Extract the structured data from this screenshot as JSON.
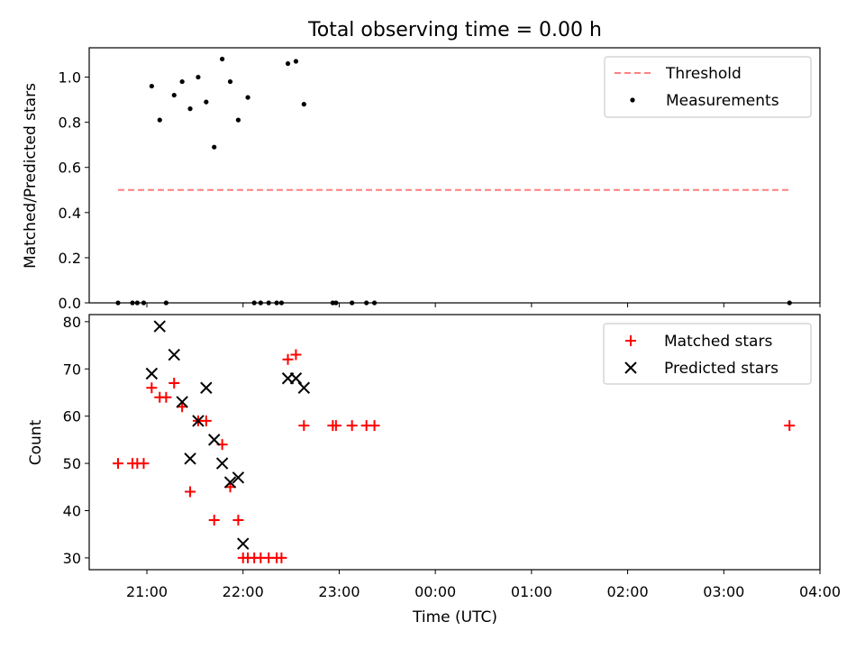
{
  "title": "Total observing time = 0.00 h",
  "xlabel": "Time (UTC)",
  "x_ticks": [
    "21:00",
    "22:00",
    "23:00",
    "00:00",
    "01:00",
    "02:00",
    "03:00",
    "04:00"
  ],
  "chart_data": [
    {
      "type": "scatter",
      "title": "Total observing time = 0.00 h",
      "ylabel": "Matched/Predicted stars",
      "xlabel": "",
      "x_unit": "hours since 00:00 UTC of first night day",
      "xlim": [
        "20:24",
        "04:00"
      ],
      "ylim": [
        0,
        1.13
      ],
      "y_ticks": [
        "0.0",
        "0.2",
        "0.4",
        "0.6",
        "0.8",
        "1.0"
      ],
      "legend_position": "top-right",
      "threshold": {
        "name": "Threshold",
        "value": 0.5,
        "x_start": "20:42",
        "x_end": "03:42",
        "color": "#ff7f7f"
      },
      "series": [
        {
          "name": "Measurements",
          "color": "#000000",
          "points": [
            [
              "20:42",
              0.0
            ],
            [
              "20:51",
              0.0
            ],
            [
              "20:54",
              0.0
            ],
            [
              "20:58",
              0.0
            ],
            [
              "21:03",
              0.96
            ],
            [
              "21:08",
              0.81
            ],
            [
              "21:12",
              0.0
            ],
            [
              "21:17",
              0.92
            ],
            [
              "21:22",
              0.98
            ],
            [
              "21:27",
              0.86
            ],
            [
              "21:32",
              1.0
            ],
            [
              "21:37",
              0.89
            ],
            [
              "21:42",
              0.69
            ],
            [
              "21:47",
              1.08
            ],
            [
              "21:52",
              0.98
            ],
            [
              "21:57",
              0.81
            ],
            [
              "22:03",
              0.91
            ],
            [
              "22:07",
              0.0
            ],
            [
              "22:11",
              0.0
            ],
            [
              "22:16",
              0.0
            ],
            [
              "22:21",
              0.0
            ],
            [
              "22:24",
              0.0
            ],
            [
              "22:28",
              1.06
            ],
            [
              "22:33",
              1.07
            ],
            [
              "22:38",
              0.88
            ],
            [
              "22:56",
              0.0
            ],
            [
              "22:58",
              0.0
            ],
            [
              "23:08",
              0.0
            ],
            [
              "23:17",
              0.0
            ],
            [
              "23:22",
              0.0
            ],
            [
              "03:41",
              0.0
            ]
          ]
        }
      ]
    },
    {
      "type": "scatter",
      "ylabel": "Count",
      "xlabel": "Time (UTC)",
      "xlim": [
        "20:24",
        "04:00"
      ],
      "ylim": [
        27.5,
        81.5
      ],
      "y_ticks": [
        "30",
        "40",
        "50",
        "60",
        "70",
        "80"
      ],
      "legend_position": "top-right",
      "series": [
        {
          "name": "Matched stars",
          "marker": "+",
          "color": "#ff0000",
          "points": [
            [
              "20:42",
              50
            ],
            [
              "20:51",
              50
            ],
            [
              "20:54",
              50
            ],
            [
              "20:58",
              50
            ],
            [
              "21:03",
              66
            ],
            [
              "21:08",
              64
            ],
            [
              "21:12",
              64
            ],
            [
              "21:17",
              67
            ],
            [
              "21:22",
              62
            ],
            [
              "21:27",
              44
            ],
            [
              "21:32",
              59
            ],
            [
              "21:37",
              59
            ],
            [
              "21:42",
              38
            ],
            [
              "21:47",
              54
            ],
            [
              "21:52",
              45
            ],
            [
              "21:57",
              38
            ],
            [
              "22:00",
              30
            ],
            [
              "22:03",
              30
            ],
            [
              "22:07",
              30
            ],
            [
              "22:11",
              30
            ],
            [
              "22:16",
              30
            ],
            [
              "22:21",
              30
            ],
            [
              "22:24",
              30
            ],
            [
              "22:28",
              72
            ],
            [
              "22:33",
              73
            ],
            [
              "22:38",
              58
            ],
            [
              "22:56",
              58
            ],
            [
              "22:58",
              58
            ],
            [
              "23:08",
              58
            ],
            [
              "23:17",
              58
            ],
            [
              "23:22",
              58
            ],
            [
              "03:41",
              58
            ]
          ]
        },
        {
          "name": "Predicted stars",
          "marker": "x",
          "color": "#000000",
          "points": [
            [
              "21:03",
              69
            ],
            [
              "21:08",
              79
            ],
            [
              "21:17",
              73
            ],
            [
              "21:22",
              63
            ],
            [
              "21:27",
              51
            ],
            [
              "21:32",
              59
            ],
            [
              "21:37",
              66
            ],
            [
              "21:42",
              55
            ],
            [
              "21:47",
              50
            ],
            [
              "21:52",
              46
            ],
            [
              "21:57",
              47
            ],
            [
              "22:00",
              33
            ],
            [
              "22:28",
              68
            ],
            [
              "22:33",
              68
            ],
            [
              "22:38",
              66
            ]
          ]
        }
      ]
    }
  ]
}
